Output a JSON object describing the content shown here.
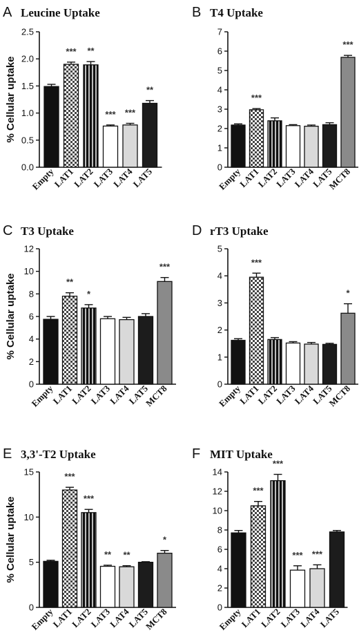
{
  "colors": {
    "black": "#111111",
    "dark": "#1c1c1c",
    "white": "#ffffff",
    "light_gray": "#d9d9d9",
    "gray": "#8a8a8a",
    "axis": "#111111"
  },
  "chart_data": [
    {
      "letter": "A",
      "title": "Leucine Uptake",
      "type": "bar",
      "ylabel": "% Cellular uptake",
      "ylim": [
        0,
        2.5
      ],
      "yticks": [
        "0.0",
        "0.5",
        "1.0",
        "1.5",
        "2.0",
        "2.5"
      ],
      "categories": [
        "Empty",
        "LAT1",
        "LAT2",
        "LAT3",
        "LAT4",
        "LAT5"
      ],
      "values": [
        1.49,
        1.9,
        1.89,
        0.76,
        0.78,
        1.18
      ],
      "errors": [
        0.04,
        0.04,
        0.06,
        0.02,
        0.03,
        0.05
      ],
      "fills": [
        "black",
        "checker",
        "stripes",
        "white",
        "light",
        "dark"
      ],
      "significance": [
        "",
        "***",
        "**",
        "***",
        "***",
        "**"
      ]
    },
    {
      "letter": "B",
      "title": "T4 Uptake",
      "type": "bar",
      "ylabel": "",
      "ylim": [
        0,
        7
      ],
      "yticks": [
        "0",
        "1",
        "2",
        "3",
        "4",
        "5",
        "6",
        "7"
      ],
      "categories": [
        "Empty",
        "LAT1",
        "LAT2",
        "LAT3",
        "LAT4",
        "LAT5",
        "MCT8"
      ],
      "values": [
        2.18,
        2.97,
        2.4,
        2.15,
        2.12,
        2.2,
        5.68
      ],
      "errors": [
        0.06,
        0.06,
        0.15,
        0.05,
        0.06,
        0.1,
        0.1
      ],
      "fills": [
        "black",
        "checker",
        "stripes",
        "white",
        "light",
        "dark",
        "gray"
      ],
      "significance": [
        "",
        "***",
        "",
        "",
        "",
        "",
        "***"
      ]
    },
    {
      "letter": "C",
      "title": "T3 Uptake",
      "type": "bar",
      "ylabel": "% Cellular uptake",
      "ylim": [
        0,
        12
      ],
      "yticks": [
        "0",
        "2",
        "4",
        "6",
        "8",
        "10",
        "12"
      ],
      "categories": [
        "Empty",
        "LAT1",
        "LAT2",
        "LAT3",
        "LAT4",
        "LAT5",
        "MCT8"
      ],
      "values": [
        5.75,
        7.8,
        6.75,
        5.8,
        5.72,
        6.0,
        9.1
      ],
      "errors": [
        0.25,
        0.3,
        0.3,
        0.2,
        0.2,
        0.25,
        0.35
      ],
      "fills": [
        "black",
        "checker",
        "stripes",
        "white",
        "light",
        "dark",
        "gray"
      ],
      "significance": [
        "",
        "**",
        "*",
        "",
        "",
        "",
        "***"
      ]
    },
    {
      "letter": "D",
      "title": "rT3 Uptake",
      "type": "bar",
      "ylabel": "",
      "ylim": [
        0,
        5
      ],
      "yticks": [
        "0",
        "1",
        "2",
        "3",
        "4",
        "5"
      ],
      "categories": [
        "Empty",
        "LAT1",
        "LAT2",
        "LAT3",
        "LAT4",
        "LAT5",
        "MCT8"
      ],
      "values": [
        1.62,
        3.95,
        1.65,
        1.52,
        1.48,
        1.47,
        2.62
      ],
      "errors": [
        0.06,
        0.15,
        0.07,
        0.05,
        0.06,
        0.04,
        0.35
      ],
      "fills": [
        "black",
        "checker",
        "stripes",
        "white",
        "light",
        "dark",
        "gray"
      ],
      "significance": [
        "",
        "***",
        "",
        "",
        "",
        "",
        "*"
      ]
    },
    {
      "letter": "E",
      "title": "3,3'-T2 Uptake",
      "type": "bar",
      "ylabel": "% Cellular uptake",
      "ylim": [
        0,
        15
      ],
      "yticks": [
        "0",
        "5",
        "10",
        "15"
      ],
      "categories": [
        "Empty",
        "LAT1",
        "LAT2",
        "LAT3",
        "LAT4",
        "LAT5",
        "MCT8"
      ],
      "values": [
        5.1,
        13.0,
        10.5,
        4.55,
        4.5,
        5.0,
        6.0
      ],
      "errors": [
        0.12,
        0.3,
        0.35,
        0.12,
        0.12,
        0.06,
        0.3
      ],
      "fills": [
        "black",
        "checker",
        "stripes",
        "white",
        "light",
        "dark",
        "gray"
      ],
      "significance": [
        "",
        "***",
        "***",
        "**",
        "**",
        "",
        "*"
      ]
    },
    {
      "letter": "F",
      "title": "MIT Uptake",
      "type": "bar",
      "ylabel": "",
      "ylim": [
        0,
        14
      ],
      "yticks": [
        "0",
        "2",
        "4",
        "6",
        "8",
        "10",
        "12",
        "14"
      ],
      "categories": [
        "Empty",
        "LAT1",
        "LAT2",
        "LAT3",
        "LAT4",
        "LAT5"
      ],
      "values": [
        7.7,
        10.5,
        13.1,
        3.85,
        4.0,
        7.8
      ],
      "errors": [
        0.25,
        0.45,
        0.65,
        0.45,
        0.4,
        0.15
      ],
      "fills": [
        "black",
        "checker",
        "stripes",
        "white",
        "light",
        "dark"
      ],
      "significance": [
        "",
        "***",
        "***",
        "***",
        "***",
        ""
      ]
    }
  ]
}
